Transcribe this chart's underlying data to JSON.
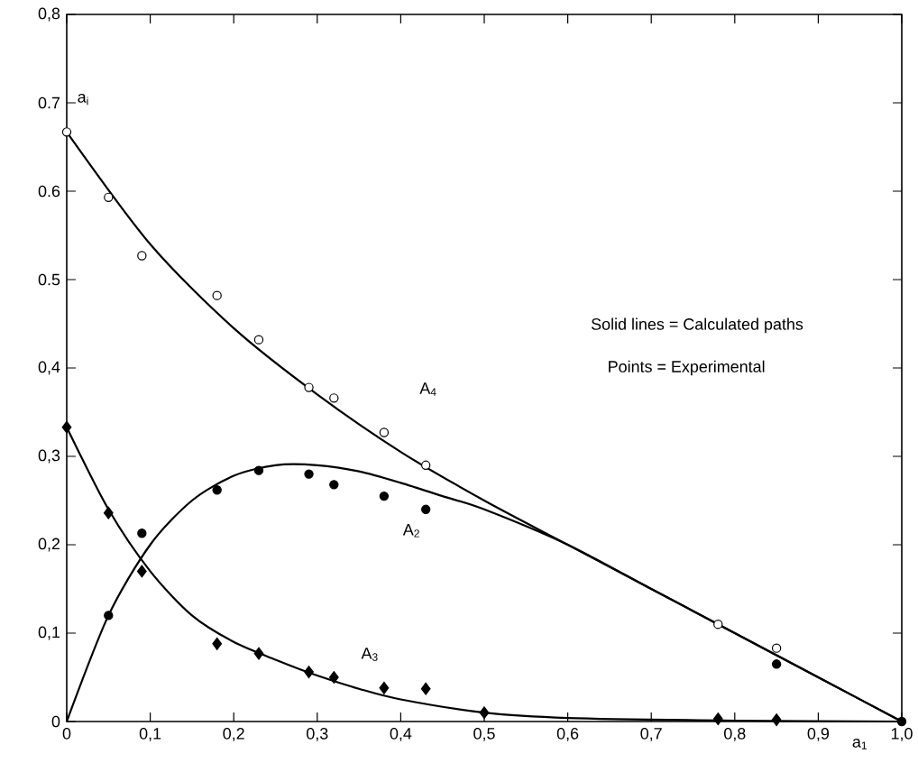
{
  "chart_data": {
    "type": "scatter",
    "xlabel": "a$_{1}$",
    "xlim": [
      0,
      1.0
    ],
    "ylim": [
      0,
      0.8
    ],
    "xticks": [
      0,
      {
        "value": 0.1,
        "label": "0,1"
      },
      {
        "value": 0.2,
        "label": "0,2"
      },
      {
        "value": 0.3,
        "label": "0,3"
      },
      {
        "value": 0.4,
        "label": "0,4"
      },
      {
        "value": 0.5,
        "label": "0,5"
      },
      {
        "value": 0.6,
        "label": "0,6"
      },
      {
        "value": 0.7,
        "label": "0,7"
      },
      {
        "value": 0.8,
        "label": "0,8"
      },
      {
        "value": 0.9,
        "label": "0,9"
      },
      {
        "value": 1.0,
        "label": "1,0"
      }
    ],
    "yticks": [
      0,
      {
        "value": 0.1,
        "label": "0,1"
      },
      {
        "value": 0.2,
        "label": "0,2"
      },
      {
        "value": 0.3,
        "label": "0,3"
      },
      {
        "value": 0.4,
        "label": "0,4"
      },
      {
        "value": 0.5,
        "label": "0.5"
      },
      {
        "value": 0.6,
        "label": "0.6"
      },
      {
        "value": 0.7,
        "label": "0.7"
      },
      {
        "value": 0.8,
        "label": "0,8"
      }
    ],
    "series": [
      {
        "type": "line",
        "color": "#000000",
        "marker": "none",
        "x": [
          0,
          0.1,
          0.2,
          0.3,
          0.4,
          0.5,
          0.6,
          0.7,
          0.8,
          0.9,
          1.0
        ],
        "values": [
          0.667,
          0.54,
          0.445,
          0.37,
          0.305,
          0.25,
          0.2,
          0.15,
          0.1,
          0.05,
          0
        ]
      },
      {
        "type": "line",
        "color": "#000000",
        "marker": "none",
        "x": [
          0,
          0.05,
          0.1,
          0.15,
          0.2,
          0.25,
          0.3,
          0.35,
          0.4,
          0.45,
          0.5,
          0.6,
          0.7,
          0.8,
          0.9,
          1.0
        ],
        "values": [
          0,
          0.12,
          0.2,
          0.25,
          0.278,
          0.29,
          0.29,
          0.283,
          0.27,
          0.255,
          0.24,
          0.2,
          0.15,
          0.1,
          0.05,
          0
        ]
      },
      {
        "type": "line",
        "color": "#000000",
        "marker": "none",
        "x": [
          0,
          0.05,
          0.1,
          0.15,
          0.2,
          0.25,
          0.3,
          0.35,
          0.4,
          0.5,
          0.6,
          0.8,
          1.0
        ],
        "values": [
          0.333,
          0.24,
          0.17,
          0.12,
          0.09,
          0.07,
          0.052,
          0.037,
          0.025,
          0.01,
          0.004,
          0.001,
          0
        ]
      },
      {
        "color": "#ffffff",
        "marker": "circle",
        "x": [
          0,
          0.05,
          0.09,
          0.18,
          0.23,
          0.29,
          0.32,
          0.38,
          0.43,
          0.78,
          0.85
        ],
        "values": [
          0.667,
          0.593,
          0.527,
          0.482,
          0.432,
          0.378,
          0.366,
          0.327,
          0.29,
          0.11,
          0.083
        ]
      },
      {
        "color": "#000000",
        "marker": "circle",
        "x": [
          0.05,
          0.09,
          0.18,
          0.23,
          0.29,
          0.32,
          0.38,
          0.43,
          0.85,
          1.0
        ],
        "values": [
          0.12,
          0.213,
          0.262,
          0.284,
          0.28,
          0.268,
          0.255,
          0.24,
          0.065,
          0
        ]
      },
      {
        "color": "#000000",
        "marker": "diamond",
        "x": [
          0,
          0.05,
          0.09,
          0.18,
          0.23,
          0.29,
          0.32,
          0.38,
          0.43,
          0.5,
          0.78,
          0.85
        ],
        "values": [
          0.333,
          0.236,
          0.17,
          0.088,
          0.077,
          0.056,
          0.05,
          0.038,
          0.037,
          0.01,
          0.003,
          0.002
        ]
      }
    ],
    "annotations": [
      "A$_{4}$",
      "A$_{2}$",
      "A$_{3}$",
      "a$_{i}$",
      "Solid lines = Calculated paths",
      "Points = Experimental"
    ]
  }
}
